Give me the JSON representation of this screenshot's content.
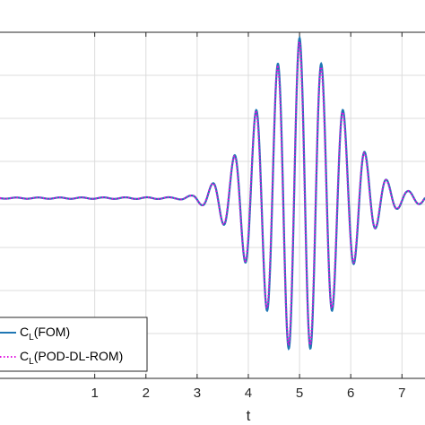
{
  "chart_data": {
    "type": "line",
    "xlabel": "t",
    "ylabel": "",
    "xlim": [
      -0.85,
      7.45
    ],
    "ylim": [
      -1.0,
      0.92
    ],
    "xticks": [
      1,
      2,
      3,
      4,
      5,
      6,
      7
    ],
    "xtick_labels": [
      "1",
      "2",
      "3",
      "4",
      "5",
      "6",
      "7"
    ],
    "grid": true,
    "legend_position": "bottom-left",
    "series": [
      {
        "name_main": "C",
        "name_sub": "L",
        "name_rest": "(FOM)",
        "color": "#1f77b4",
        "style": "solid"
      },
      {
        "name_main": "C",
        "name_sub": "L",
        "name_rest": "(POD-DL-ROM)",
        "color": "#e010e0",
        "style": "dotted"
      }
    ],
    "signal": {
      "baseline": 0.0,
      "frequency": 2.35,
      "envelope_t": [
        -0.85,
        2.6,
        2.9,
        3.1,
        3.3,
        3.5,
        3.7,
        3.9,
        4.1,
        4.3,
        4.5,
        4.7,
        4.9,
        5.0,
        5.1,
        5.3,
        5.5,
        5.7,
        5.9,
        6.1,
        6.3,
        6.5,
        6.7,
        6.9,
        7.1,
        7.45
      ],
      "envelope_a": [
        0.003,
        0.005,
        0.015,
        0.04,
        0.08,
        0.14,
        0.22,
        0.33,
        0.45,
        0.58,
        0.7,
        0.8,
        0.86,
        0.88,
        0.86,
        0.8,
        0.7,
        0.58,
        0.45,
        0.34,
        0.24,
        0.16,
        0.1,
        0.06,
        0.04,
        0.03
      ]
    }
  }
}
